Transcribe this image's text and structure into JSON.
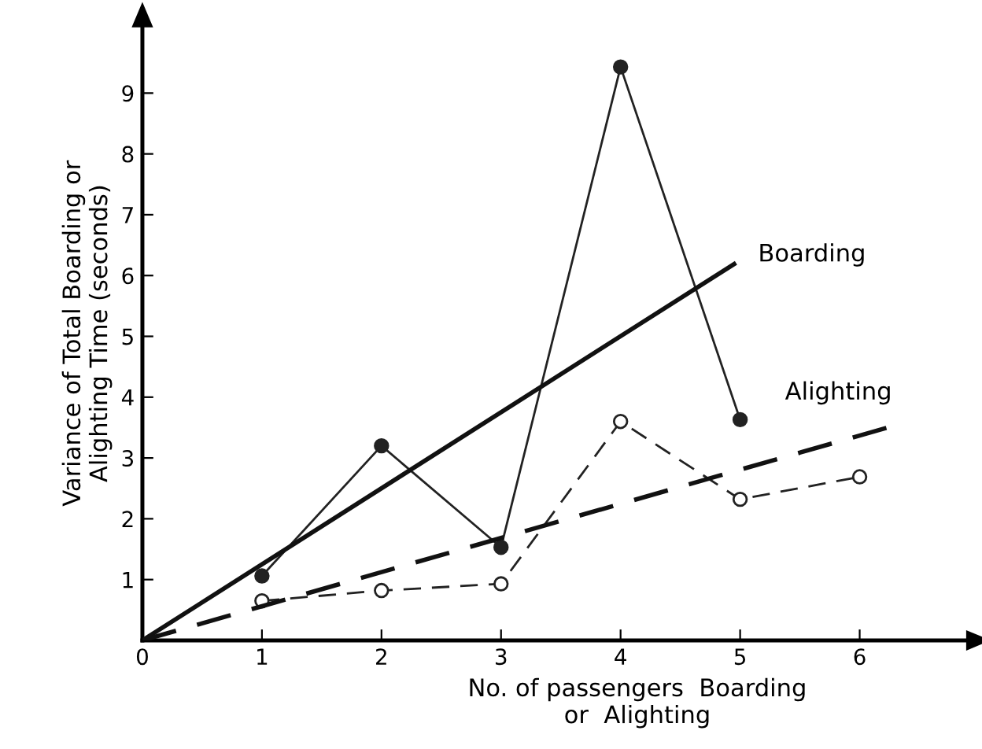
{
  "chart_data": {
    "type": "line",
    "xlabel": "No. of passengers  Boarding\nor  Alighting",
    "ylabel": "Variance of Total Boarding or\nAlighting Time (seconds)",
    "xlim": [
      0,
      6.9
    ],
    "ylim": [
      0,
      10.1
    ],
    "xticks": [
      0,
      1,
      2,
      3,
      4,
      5,
      6
    ],
    "yticks": [
      1,
      2,
      3,
      4,
      5,
      6,
      7,
      8,
      9
    ],
    "grid": false,
    "legend": false,
    "series": [
      {
        "x": [
          1,
          2,
          3,
          4,
          5
        ],
        "values": [
          1.06,
          3.2,
          1.53,
          9.43,
          3.63
        ],
        "color": "#222222",
        "marker": "circle",
        "line_style": "solid"
      },
      {
        "x": [
          1,
          2,
          3,
          4,
          5,
          6
        ],
        "values": [
          0.65,
          0.82,
          0.93,
          3.6,
          2.32,
          2.69
        ],
        "color": "#222222",
        "marker": "circle",
        "line_style": "dashed"
      },
      {
        "name": "Boarding",
        "x": [
          0,
          4.95
        ],
        "values": [
          0,
          6.19
        ],
        "color": "#111111",
        "marker": "none",
        "line_style": "solid"
      },
      {
        "name": "Alighting",
        "x": [
          0,
          6.27
        ],
        "values": [
          0,
          3.52
        ],
        "color": "#111111",
        "marker": "none",
        "line_style": "dashed"
      }
    ]
  }
}
